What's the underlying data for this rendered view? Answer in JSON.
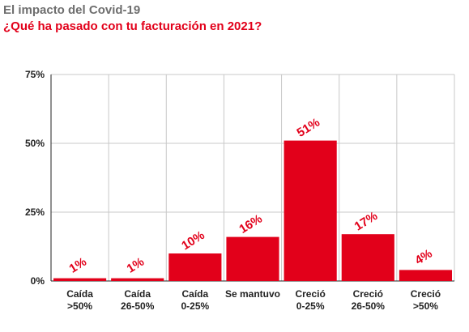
{
  "header": {
    "title": "El impacto del Covid-19",
    "subtitle": "¿Qué ha pasado con tu facturación en 2021?"
  },
  "colors": {
    "bar": "#e2001a",
    "label": "#e2001a",
    "grid": "#c8c8c8",
    "axis": "#222222",
    "title": "#6e6e6e",
    "subtitle": "#e2001a"
  },
  "chart_data": {
    "type": "bar",
    "categories": [
      [
        "Caída",
        ">50%"
      ],
      [
        "Caída",
        "26-50%"
      ],
      [
        "Caída",
        "0-25%"
      ],
      [
        "Se mantuvo"
      ],
      [
        "Creció",
        "0-25%"
      ],
      [
        "Creció",
        "26-50%"
      ],
      [
        "Creció",
        ">50%"
      ]
    ],
    "values": [
      1,
      1,
      10,
      16,
      51,
      17,
      4
    ],
    "data_labels": [
      "1%",
      "1%",
      "10%",
      "16%",
      "51%",
      "17%",
      "4%"
    ],
    "y_ticks": [
      0,
      25,
      50,
      75
    ],
    "y_tick_labels": [
      "0%",
      "25%",
      "50%",
      "75%"
    ],
    "ylim": [
      0,
      75
    ],
    "grid": true,
    "title": "El impacto del Covid-19",
    "subtitle": "¿Qué ha pasado con tu facturación en 2021?",
    "xlabel": "",
    "ylabel": ""
  }
}
